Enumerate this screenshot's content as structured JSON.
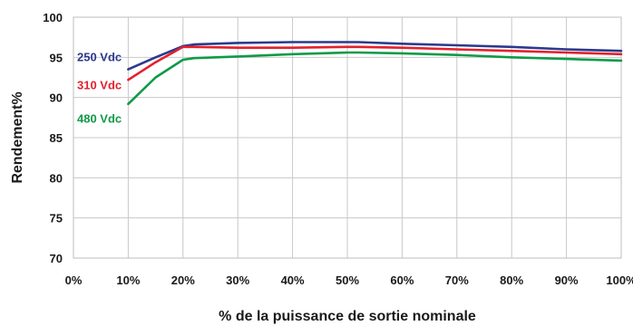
{
  "chart_data": {
    "type": "line",
    "title": "",
    "xlabel": "% de la puissance de sortie nominale",
    "ylabel": "Rendement%",
    "xlim": [
      0,
      100
    ],
    "ylim": [
      70,
      100
    ],
    "x_ticks": [
      "0%",
      "10%",
      "20%",
      "30%",
      "40%",
      "50%",
      "60%",
      "70%",
      "80%",
      "90%",
      "100%"
    ],
    "y_ticks": [
      "70",
      "75",
      "80",
      "85",
      "90",
      "95",
      "100"
    ],
    "grid": true,
    "series": [
      {
        "name": "250 Vdc",
        "color": "#2b3a8c",
        "x": [
          10,
          15,
          20,
          22,
          30,
          40,
          50,
          52,
          60,
          70,
          80,
          90,
          100
        ],
        "y": [
          93.5,
          95.0,
          96.4,
          96.6,
          96.8,
          96.9,
          96.9,
          96.9,
          96.7,
          96.5,
          96.3,
          96.0,
          95.8
        ]
      },
      {
        "name": "310 Vdc",
        "color": "#e3212e",
        "x": [
          10,
          15,
          20,
          22,
          30,
          40,
          50,
          52,
          60,
          70,
          80,
          90,
          100
        ],
        "y": [
          92.2,
          94.4,
          96.3,
          96.3,
          96.2,
          96.2,
          96.3,
          96.3,
          96.2,
          96.0,
          95.8,
          95.6,
          95.4
        ]
      },
      {
        "name": "480 Vdc",
        "color": "#0f9a48",
        "x": [
          10,
          15,
          20,
          22,
          30,
          40,
          50,
          52,
          60,
          70,
          80,
          90,
          100
        ],
        "y": [
          89.2,
          92.5,
          94.7,
          94.9,
          95.1,
          95.4,
          95.6,
          95.6,
          95.5,
          95.3,
          95.0,
          94.8,
          94.6
        ]
      }
    ]
  }
}
